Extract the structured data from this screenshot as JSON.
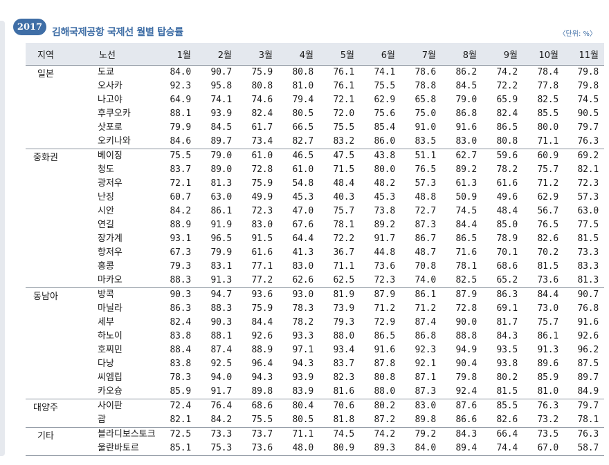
{
  "header": {
    "year": "2017",
    "title": "김해국제공항 국제선 월별 탑승률",
    "unit": "〈단위: %〉"
  },
  "table": {
    "columns": [
      "지역",
      "노선",
      "1월",
      "2월",
      "3월",
      "4월",
      "5월",
      "6월",
      "7월",
      "8월",
      "9월",
      "10월",
      "11월"
    ],
    "groups": [
      {
        "region": "일본",
        "rows": [
          {
            "route": "도쿄",
            "values": [
              "84.0",
              "90.7",
              "75.9",
              "80.8",
              "76.1",
              "74.1",
              "78.6",
              "86.2",
              "74.2",
              "78.4",
              "79.8"
            ]
          },
          {
            "route": "오사카",
            "values": [
              "92.3",
              "95.8",
              "80.8",
              "81.0",
              "76.1",
              "75.5",
              "78.8",
              "84.5",
              "72.2",
              "77.8",
              "79.8"
            ]
          },
          {
            "route": "나고야",
            "values": [
              "64.9",
              "74.1",
              "74.6",
              "79.4",
              "72.1",
              "62.9",
              "65.8",
              "79.0",
              "65.9",
              "82.5",
              "74.5"
            ]
          },
          {
            "route": "후쿠오카",
            "values": [
              "88.1",
              "93.9",
              "82.4",
              "80.5",
              "72.0",
              "75.6",
              "75.0",
              "86.8",
              "82.4",
              "85.5",
              "90.5"
            ]
          },
          {
            "route": "삿포로",
            "values": [
              "79.9",
              "84.5",
              "61.7",
              "66.5",
              "75.5",
              "85.4",
              "91.0",
              "91.6",
              "86.5",
              "80.0",
              "79.7"
            ]
          },
          {
            "route": "오키나와",
            "values": [
              "84.6",
              "89.7",
              "73.4",
              "82.7",
              "83.2",
              "86.0",
              "83.5",
              "83.0",
              "80.8",
              "71.1",
              "76.3"
            ]
          }
        ]
      },
      {
        "region": "중화권",
        "rows": [
          {
            "route": "베이징",
            "values": [
              "75.5",
              "79.0",
              "61.0",
              "46.5",
              "47.5",
              "43.8",
              "51.1",
              "62.7",
              "59.6",
              "60.9",
              "69.2"
            ]
          },
          {
            "route": "청도",
            "values": [
              "83.7",
              "89.0",
              "72.8",
              "61.0",
              "71.5",
              "80.0",
              "76.5",
              "89.2",
              "78.2",
              "75.7",
              "82.1"
            ]
          },
          {
            "route": "광저우",
            "values": [
              "72.1",
              "81.3",
              "75.9",
              "54.8",
              "48.4",
              "48.2",
              "57.3",
              "61.3",
              "61.6",
              "71.2",
              "72.3"
            ]
          },
          {
            "route": "난징",
            "values": [
              "60.7",
              "63.0",
              "49.9",
              "45.3",
              "40.3",
              "45.3",
              "48.8",
              "50.9",
              "49.6",
              "62.9",
              "57.3"
            ]
          },
          {
            "route": "시안",
            "values": [
              "84.2",
              "86.1",
              "72.3",
              "47.0",
              "75.7",
              "73.8",
              "72.7",
              "74.5",
              "48.4",
              "56.7",
              "63.0"
            ]
          },
          {
            "route": "연길",
            "values": [
              "88.9",
              "91.9",
              "83.0",
              "67.6",
              "78.1",
              "89.2",
              "87.3",
              "84.4",
              "85.0",
              "76.5",
              "77.5"
            ]
          },
          {
            "route": "장가계",
            "values": [
              "93.1",
              "96.5",
              "91.5",
              "64.4",
              "72.2",
              "91.7",
              "86.7",
              "86.5",
              "78.9",
              "82.6",
              "81.5"
            ]
          },
          {
            "route": "항저우",
            "values": [
              "67.3",
              "79.9",
              "61.6",
              "41.3",
              "36.7",
              "44.8",
              "48.7",
              "71.6",
              "70.1",
              "70.2",
              "73.3"
            ]
          },
          {
            "route": "홍콩",
            "values": [
              "79.3",
              "83.1",
              "77.1",
              "83.0",
              "71.1",
              "73.6",
              "70.8",
              "78.1",
              "68.6",
              "81.5",
              "83.3"
            ]
          },
          {
            "route": "마카오",
            "values": [
              "88.3",
              "91.3",
              "77.2",
              "62.6",
              "62.5",
              "72.3",
              "74.0",
              "82.5",
              "65.2",
              "73.6",
              "81.3"
            ]
          }
        ]
      },
      {
        "region": "동남아",
        "rows": [
          {
            "route": "방콕",
            "values": [
              "90.3",
              "94.7",
              "93.6",
              "93.0",
              "81.9",
              "87.9",
              "86.1",
              "87.9",
              "86.3",
              "84.4",
              "90.7"
            ]
          },
          {
            "route": "마닐라",
            "values": [
              "86.3",
              "88.3",
              "75.9",
              "78.3",
              "73.9",
              "71.2",
              "71.2",
              "72.8",
              "69.1",
              "73.0",
              "76.8"
            ]
          },
          {
            "route": "세부",
            "values": [
              "82.4",
              "90.3",
              "84.4",
              "78.2",
              "79.3",
              "72.9",
              "87.4",
              "90.0",
              "81.7",
              "75.7",
              "91.6"
            ]
          },
          {
            "route": "하노이",
            "values": [
              "83.8",
              "88.1",
              "92.6",
              "93.3",
              "88.0",
              "86.5",
              "86.8",
              "88.8",
              "84.3",
              "86.1",
              "92.6"
            ]
          },
          {
            "route": "호찌민",
            "values": [
              "88.4",
              "87.4",
              "88.9",
              "97.1",
              "93.4",
              "91.6",
              "92.3",
              "94.9",
              "93.5",
              "91.3",
              "96.2"
            ]
          },
          {
            "route": "다낭",
            "values": [
              "83.8",
              "92.5",
              "96.4",
              "94.3",
              "83.7",
              "87.8",
              "92.1",
              "90.4",
              "93.8",
              "89.6",
              "87.5"
            ]
          },
          {
            "route": "씨엠립",
            "values": [
              "78.3",
              "94.0",
              "94.3",
              "93.9",
              "82.3",
              "80.8",
              "87.1",
              "79.8",
              "80.2",
              "85.9",
              "89.7"
            ]
          },
          {
            "route": "카오슝",
            "values": [
              "85.9",
              "91.7",
              "89.8",
              "83.9",
              "81.6",
              "88.0",
              "87.3",
              "92.4",
              "81.5",
              "81.0",
              "84.9"
            ]
          }
        ]
      },
      {
        "region": "대양주",
        "rows": [
          {
            "route": "사이판",
            "values": [
              "72.4",
              "76.4",
              "68.6",
              "80.4",
              "70.6",
              "80.2",
              "83.0",
              "87.6",
              "85.5",
              "76.3",
              "79.7"
            ]
          },
          {
            "route": "괌",
            "values": [
              "82.1",
              "84.2",
              "75.5",
              "80.5",
              "81.8",
              "87.2",
              "89.8",
              "86.6",
              "82.6",
              "73.2",
              "78.1"
            ]
          }
        ]
      },
      {
        "region": "기타",
        "rows": [
          {
            "route": "블라디보스토크",
            "values": [
              "72.5",
              "73.3",
              "73.7",
              "71.1",
              "74.5",
              "74.2",
              "79.2",
              "84.3",
              "66.4",
              "73.5",
              "76.3"
            ]
          },
          {
            "route": "울란바토르",
            "values": [
              "85.1",
              "75.3",
              "73.6",
              "48.0",
              "80.9",
              "89.3",
              "84.0",
              "89.4",
              "74.4",
              "67.0",
              "58.7"
            ]
          }
        ]
      }
    ]
  }
}
